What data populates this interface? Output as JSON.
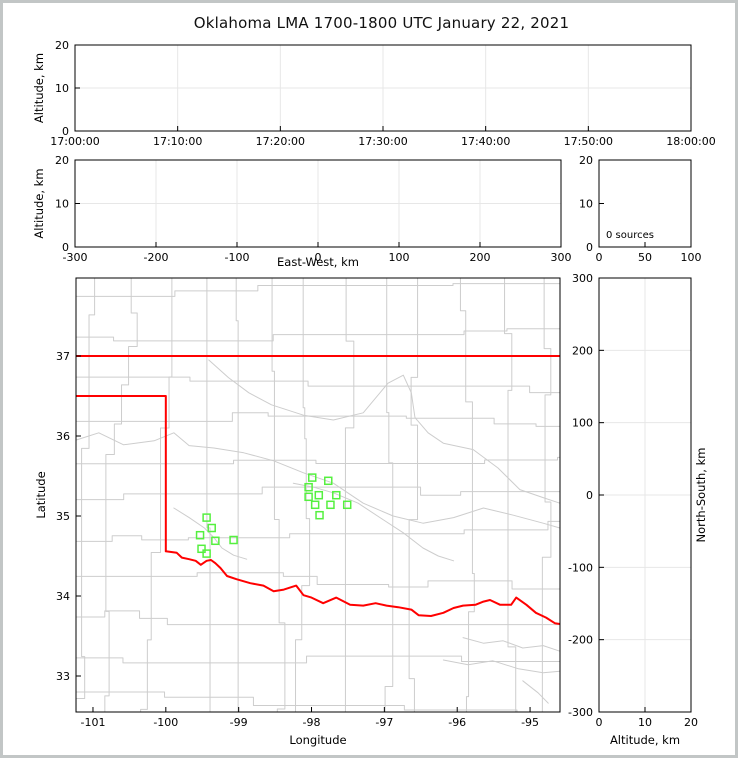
{
  "title": "Oklahoma LMA 1700-1800 UTC January 22, 2021",
  "colors": {
    "state_border": "#ff0000",
    "station_marker": "#55f03f",
    "county_line": "#cdcdcd",
    "gridline": "#e7e7e7",
    "axis": "#000000",
    "window_frame": "#c2c6c6"
  },
  "panels": {
    "time_height": {
      "ylabel": "Altitude, km",
      "yticks": [
        0,
        10,
        20
      ],
      "xtick_labels": [
        "17:00:00",
        "17:10:00",
        "17:20:00",
        "17:30:00",
        "17:40:00",
        "17:50:00",
        "18:00:00"
      ]
    },
    "east_west": {
      "ylabel": "Altitude, km",
      "xlabel": "East-West, km",
      "xticks": [
        -300,
        -200,
        -100,
        0,
        100,
        200,
        300
      ],
      "yticks": [
        0,
        10,
        20
      ]
    },
    "alt_histogram": {
      "annotation": "0 sources",
      "xticks": [
        0,
        50,
        100
      ],
      "yticks": [
        0,
        10,
        20
      ]
    },
    "plan_map": {
      "xlabel": "Longitude",
      "ylabel": "Latitude",
      "xticks": [
        -101,
        -100,
        -99,
        -98,
        -97,
        -96,
        -95
      ],
      "yticks": [
        33,
        34,
        35,
        36,
        37
      ]
    },
    "north_south": {
      "xlabel": "Altitude, km",
      "ylabel": "North-South, km",
      "xticks": [
        0,
        10,
        20
      ],
      "yticks": [
        300,
        200,
        100,
        0,
        -100,
        -200,
        -300
      ]
    }
  },
  "chart_data": {
    "type": "scatter",
    "title": "Oklahoma LMA 1700-1800 UTC January 22, 2021",
    "time_range_utc": [
      "17:00:00",
      "18:00:00"
    ],
    "source_count": 0,
    "vhf_sources": [],
    "altitude_range_km": [
      0,
      20
    ],
    "east_west_range_km": [
      -300,
      300
    ],
    "north_south_range_km": [
      -300,
      300
    ],
    "altitude_hist_range": [
      0,
      100
    ],
    "map_lon_range": [
      -101.233,
      -94.589
    ],
    "map_lat_range": [
      32.55,
      37.975
    ],
    "stations_lonlat": [
      [
        -99.44,
        34.98
      ],
      [
        -99.37,
        34.85
      ],
      [
        -99.53,
        34.76
      ],
      [
        -99.32,
        34.69
      ],
      [
        -99.07,
        34.7
      ],
      [
        -99.51,
        34.59
      ],
      [
        -99.44,
        34.53
      ],
      [
        -97.99,
        35.48
      ],
      [
        -97.77,
        35.44
      ],
      [
        -98.04,
        35.36
      ],
      [
        -97.9,
        35.26
      ],
      [
        -97.66,
        35.26
      ],
      [
        -98.04,
        35.24
      ],
      [
        -97.95,
        35.14
      ],
      [
        -97.74,
        35.14
      ],
      [
        -97.51,
        35.14
      ],
      [
        -97.89,
        35.01
      ]
    ],
    "oklahoma_border": {
      "kansas_line": [
        [
          -101.233,
          37.0
        ],
        [
          -94.589,
          37.0
        ]
      ],
      "panhandle": [
        [
          -101.233,
          36.5
        ],
        [
          -100.0,
          36.5
        ],
        [
          -100.0,
          34.56
        ]
      ],
      "red_river": [
        [
          -100.0,
          34.56
        ],
        [
          -99.85,
          34.54
        ],
        [
          -99.78,
          34.48
        ],
        [
          -99.68,
          34.46
        ],
        [
          -99.59,
          34.44
        ],
        [
          -99.52,
          34.39
        ],
        [
          -99.44,
          34.44
        ],
        [
          -99.38,
          34.45
        ],
        [
          -99.32,
          34.41
        ],
        [
          -99.25,
          34.35
        ],
        [
          -99.16,
          34.25
        ],
        [
          -99.03,
          34.21
        ],
        [
          -98.84,
          34.16
        ],
        [
          -98.66,
          34.13
        ],
        [
          -98.52,
          34.06
        ],
        [
          -98.38,
          34.08
        ],
        [
          -98.21,
          34.13
        ],
        [
          -98.11,
          34.01
        ],
        [
          -98.0,
          33.98
        ],
        [
          -97.84,
          33.91
        ],
        [
          -97.66,
          33.98
        ],
        [
          -97.47,
          33.89
        ],
        [
          -97.29,
          33.88
        ],
        [
          -97.12,
          33.91
        ],
        [
          -96.97,
          33.88
        ],
        [
          -96.81,
          33.86
        ],
        [
          -96.63,
          33.83
        ],
        [
          -96.53,
          33.76
        ],
        [
          -96.36,
          33.75
        ],
        [
          -96.19,
          33.79
        ],
        [
          -96.05,
          33.85
        ],
        [
          -95.92,
          33.88
        ],
        [
          -95.75,
          33.89
        ],
        [
          -95.64,
          33.93
        ],
        [
          -95.55,
          33.95
        ],
        [
          -95.41,
          33.89
        ],
        [
          -95.26,
          33.89
        ],
        [
          -95.19,
          33.98
        ],
        [
          -95.05,
          33.89
        ],
        [
          -94.92,
          33.79
        ],
        [
          -94.78,
          33.73
        ],
        [
          -94.66,
          33.66
        ],
        [
          -94.59,
          33.65
        ]
      ]
    },
    "rivers": [
      [
        [
          -99.41,
          36.95
        ],
        [
          -99.14,
          36.73
        ],
        [
          -98.86,
          36.54
        ],
        [
          -98.55,
          36.39
        ],
        [
          -98.11,
          36.26
        ],
        [
          -97.7,
          36.2
        ],
        [
          -97.29,
          36.29
        ],
        [
          -96.95,
          36.66
        ],
        [
          -96.74,
          36.76
        ],
        [
          -96.63,
          36.54
        ],
        [
          -96.58,
          36.23
        ],
        [
          -96.4,
          36.04
        ],
        [
          -96.19,
          35.91
        ],
        [
          -95.78,
          35.83
        ],
        [
          -95.44,
          35.6
        ],
        [
          -95.14,
          35.33
        ],
        [
          -94.82,
          35.23
        ],
        [
          -94.59,
          35.16
        ]
      ],
      [
        [
          -101.23,
          35.95
        ],
        [
          -100.92,
          36.04
        ],
        [
          -100.58,
          35.89
        ],
        [
          -100.16,
          35.94
        ],
        [
          -99.89,
          36.04
        ],
        [
          -99.68,
          35.88
        ],
        [
          -99.34,
          35.85
        ],
        [
          -98.93,
          35.79
        ],
        [
          -98.52,
          35.69
        ],
        [
          -98.11,
          35.54
        ],
        [
          -97.7,
          35.41
        ],
        [
          -97.29,
          35.16
        ],
        [
          -96.88,
          35.0
        ],
        [
          -96.47,
          34.91
        ],
        [
          -96.05,
          34.98
        ],
        [
          -95.64,
          35.1
        ],
        [
          -95.23,
          35.01
        ],
        [
          -94.82,
          34.91
        ],
        [
          -94.59,
          34.85
        ]
      ],
      [
        [
          -98.25,
          35.41
        ],
        [
          -97.97,
          35.36
        ],
        [
          -97.7,
          35.29
        ],
        [
          -97.36,
          35.16
        ],
        [
          -97.01,
          34.95
        ],
        [
          -96.74,
          34.79
        ],
        [
          -96.47,
          34.6
        ],
        [
          -96.26,
          34.5
        ],
        [
          -96.05,
          34.44
        ]
      ],
      [
        [
          -99.89,
          35.1
        ],
        [
          -99.68,
          34.98
        ],
        [
          -99.47,
          34.85
        ],
        [
          -99.34,
          34.73
        ],
        [
          -99.23,
          34.6
        ],
        [
          -99.07,
          34.51
        ],
        [
          -98.89,
          34.46
        ]
      ],
      [
        [
          -95.92,
          33.48
        ],
        [
          -95.64,
          33.41
        ],
        [
          -95.37,
          33.44
        ],
        [
          -95.1,
          33.35
        ],
        [
          -94.82,
          33.38
        ],
        [
          -94.59,
          33.31
        ]
      ],
      [
        [
          -96.19,
          33.2
        ],
        [
          -95.85,
          33.14
        ],
        [
          -95.51,
          33.19
        ],
        [
          -95.16,
          33.09
        ],
        [
          -94.82,
          33.04
        ],
        [
          -94.59,
          33.06
        ]
      ],
      [
        [
          -95.1,
          32.94
        ],
        [
          -94.89,
          32.79
        ],
        [
          -94.75,
          32.66
        ]
      ]
    ],
    "county_grid_style": {
      "seed": 22,
      "color": "#cdcdcd"
    }
  }
}
